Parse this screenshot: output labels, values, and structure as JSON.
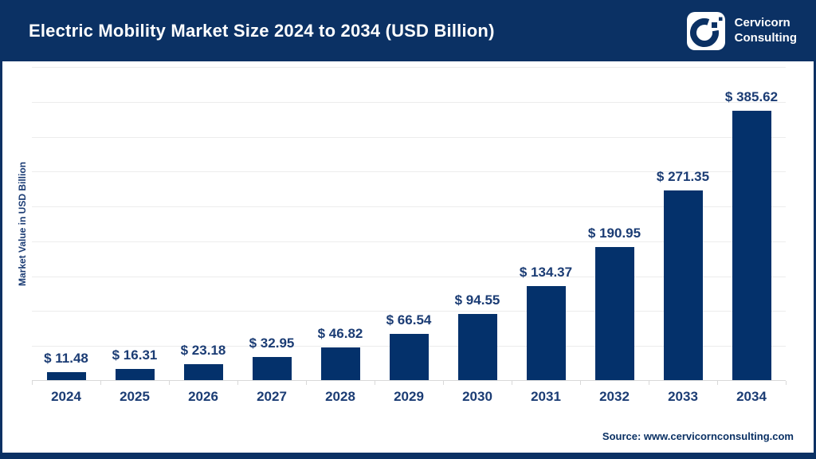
{
  "header": {
    "title": "Electric Mobility Market Size 2024 to 2034 (USD Billion)",
    "brand": {
      "line1": "Cervicorn",
      "line2": "Consulting"
    }
  },
  "chart_data": {
    "type": "bar",
    "title": "Electric Mobility Market Size 2024 to 2034 (USD Billion)",
    "categories": [
      "2024",
      "2025",
      "2026",
      "2027",
      "2028",
      "2029",
      "2030",
      "2031",
      "2032",
      "2033",
      "2034"
    ],
    "values": [
      11.48,
      16.31,
      23.18,
      32.95,
      46.82,
      66.54,
      94.55,
      134.37,
      190.95,
      271.35,
      385.62
    ],
    "value_labels": [
      "$ 11.48",
      "$ 16.31",
      "$ 23.18",
      "$ 32.95",
      "$ 46.82",
      "$ 66.54",
      "$ 94.55",
      "$ 134.37",
      "$ 190.95",
      "$ 271.35",
      "$ 385.62"
    ],
    "xlabel": "",
    "ylabel": "Market Value in USD Billion",
    "ylim": [
      0,
      450
    ],
    "grid_step": 50,
    "grid": true,
    "legend": "none"
  },
  "footer": {
    "source": "Source: www.cervicornconsulting.com"
  },
  "colors": {
    "navy": "#0B3164",
    "bar": "#04316B",
    "label": "#1B3C74",
    "grid": "#ECECEC",
    "axis": "#D9D9D9",
    "background": "#FFFFFF"
  }
}
